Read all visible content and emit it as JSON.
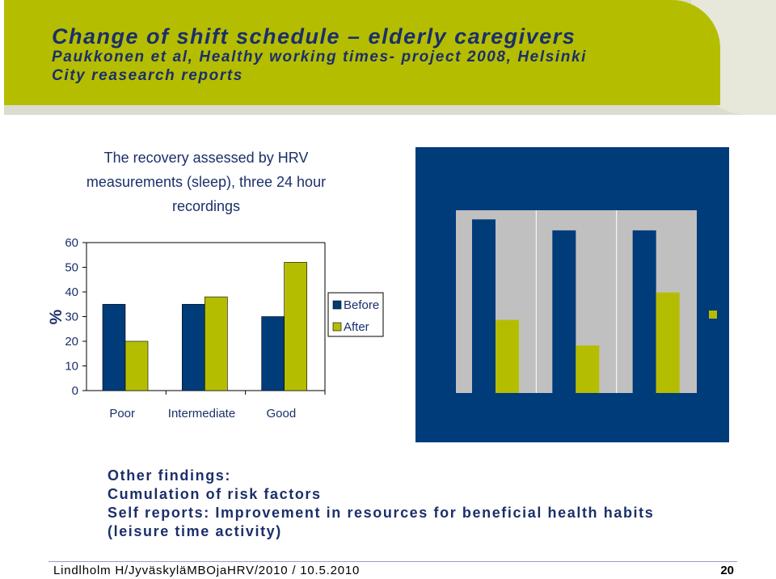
{
  "header": {
    "title": "Change of shift schedule – elderly caregivers",
    "subtitle_line1": "Paukkonen et al, Healthy working times- project 2008, Helsinki",
    "subtitle_line2": "City reasearch reports"
  },
  "colors": {
    "header_band": "#b5bd00",
    "text_navy": "#1b2f6a",
    "before": "#003b7a",
    "after": "#b5bd00",
    "panel_blue": "#003b7a",
    "panel_grey": "#c0c0c0"
  },
  "chart_data": [
    {
      "type": "bar",
      "title": "The recovery assessed by HRV measurements (sleep), three 24 hour recordings",
      "ylabel": "%",
      "ylim": [
        0,
        60
      ],
      "yticks": [
        "0",
        "10",
        "20",
        "30",
        "40",
        "50",
        "60"
      ],
      "categories": [
        "Poor",
        "Intermediate",
        "Good"
      ],
      "series": [
        {
          "name": "Before",
          "values": [
            35,
            35,
            30
          ]
        },
        {
          "name": "After",
          "values": [
            20,
            38,
            52
          ]
        }
      ],
      "legend": "right",
      "grid": false
    },
    {
      "type": "bar",
      "title": "",
      "categories": [
        "",
        "",
        ""
      ],
      "series": [
        {
          "name": "",
          "values": [
            95,
            89,
            89
          ]
        },
        {
          "name": "",
          "values": [
            40,
            26,
            55
          ]
        }
      ],
      "ylim": [
        0,
        100
      ]
    }
  ],
  "findings": {
    "line1": "Other findings:",
    "line2": "Cumulation of risk factors",
    "line3": "Self reports: Improvement in resources for beneficial health habits",
    "line4": "(leisure time activity)"
  },
  "footer": {
    "left": "Lindlholm H/JyväskyläMBOjaHRV/2010 / 10.5.2010",
    "page_number": "20"
  }
}
